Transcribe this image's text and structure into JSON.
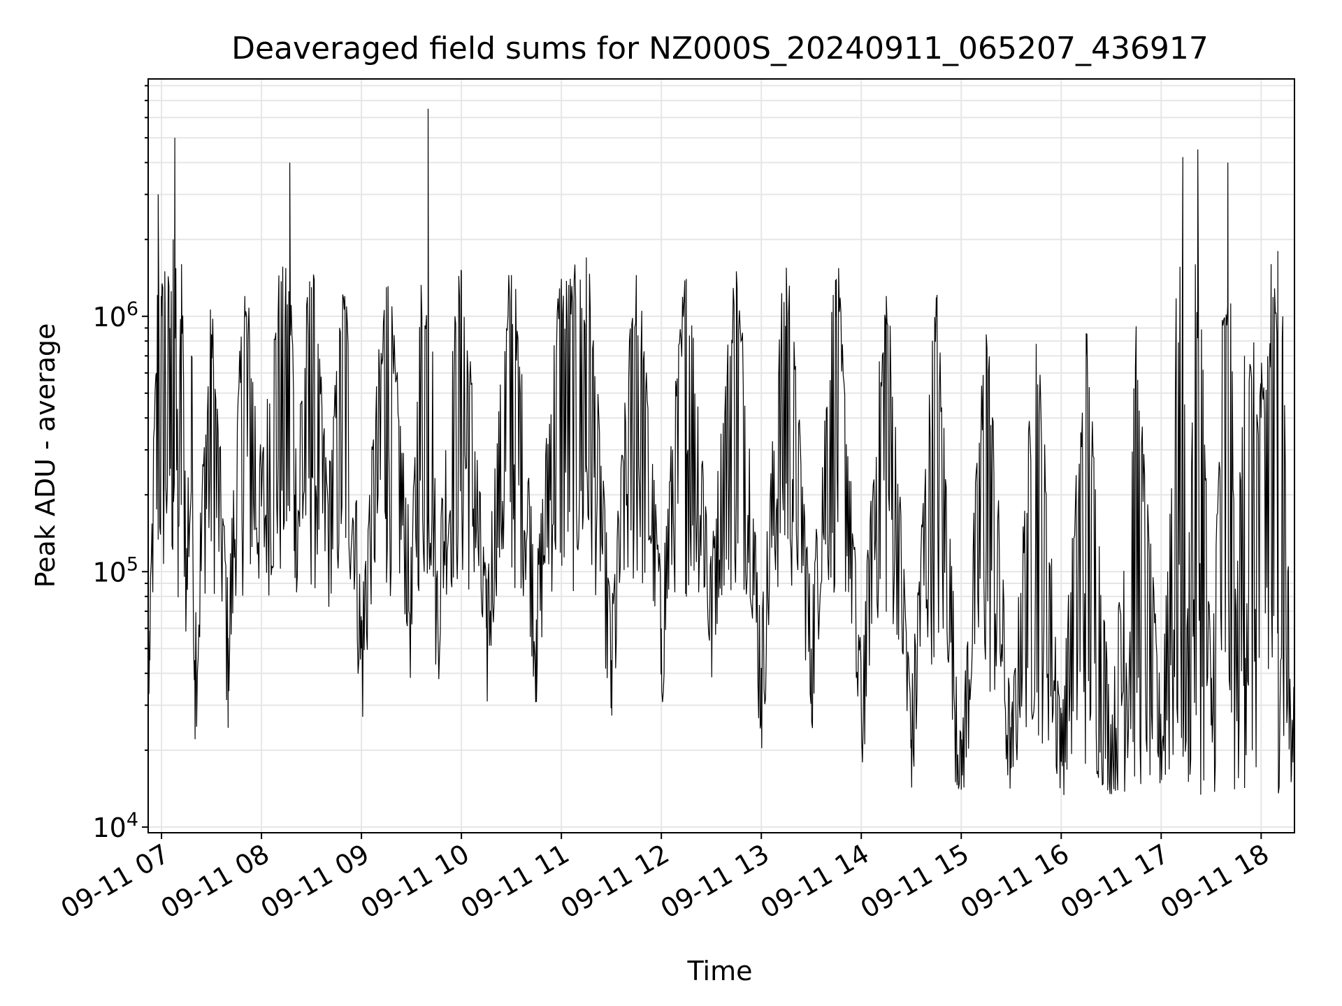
{
  "chart_data": {
    "type": "line",
    "title": "Deaveraged field sums for NZ000S_20240911_065207_436917",
    "xlabel": "Time",
    "ylabel": "Peak ADU - average",
    "yscale": "log",
    "ylim": [
      9500,
      8500000
    ],
    "xlim": [
      "2024-09-11T06:52",
      "2024-09-11T18:20"
    ],
    "grid": true,
    "legend": "none",
    "line_color": "#000000",
    "x_tick_labels": [
      "09-11 07",
      "09-11 08",
      "09-11 09",
      "09-11 10",
      "09-11 11",
      "09-11 12",
      "09-11 13",
      "09-11 14",
      "09-11 15",
      "09-11 16",
      "09-11 17",
      "09-11 18"
    ],
    "x_tick_times": [
      "2024-09-11T07:00",
      "2024-09-11T08:00",
      "2024-09-11T09:00",
      "2024-09-11T10:00",
      "2024-09-11T11:00",
      "2024-09-11T12:00",
      "2024-09-11T13:00",
      "2024-09-11T14:00",
      "2024-09-11T15:00",
      "2024-09-11T16:00",
      "2024-09-11T17:00",
      "2024-09-11T18:00"
    ],
    "y_tick_labels": [
      {
        "base": "10",
        "exp": "4",
        "value": 10000
      },
      {
        "base": "10",
        "exp": "5",
        "value": 100000
      },
      {
        "base": "10",
        "exp": "6",
        "value": 1000000
      }
    ],
    "series": [
      {
        "points": [
          [
            "2024-09-11T06:52",
            70000
          ],
          [
            "2024-09-11T06:53",
            45000
          ],
          [
            "2024-09-11T06:55",
            200000
          ],
          [
            "2024-09-11T06:57",
            600000
          ],
          [
            "2024-09-11T06:58",
            3000000
          ],
          [
            "2024-09-11T07:00",
            1000000
          ],
          [
            "2024-09-11T07:02",
            1500000
          ],
          [
            "2024-09-11T07:05",
            900000
          ],
          [
            "2024-09-11T07:07",
            2000000
          ],
          [
            "2024-09-11T07:08",
            5000000
          ],
          [
            "2024-09-11T07:10",
            150000
          ],
          [
            "2024-09-11T07:12",
            1600000
          ],
          [
            "2024-09-11T07:15",
            90000
          ],
          [
            "2024-09-11T07:18",
            700000
          ],
          [
            "2024-09-11T07:20",
            45000
          ],
          [
            "2024-09-11T07:30",
            850000
          ],
          [
            "2024-09-11T07:40",
            55000
          ],
          [
            "2024-09-11T07:50",
            1200000
          ],
          [
            "2024-09-11T08:00",
            180000
          ],
          [
            "2024-09-11T08:10",
            1000000
          ],
          [
            "2024-09-11T08:17",
            4000000
          ],
          [
            "2024-09-11T08:20",
            200000
          ],
          [
            "2024-09-11T08:30",
            1300000
          ],
          [
            "2024-09-11T08:40",
            150000
          ],
          [
            "2024-09-11T08:50",
            1200000
          ],
          [
            "2024-09-11T09:00",
            50000
          ],
          [
            "2024-09-11T09:15",
            1300000
          ],
          [
            "2024-09-11T09:30",
            80000
          ],
          [
            "2024-09-11T09:40",
            6500000
          ],
          [
            "2024-09-11T09:45",
            70000
          ],
          [
            "2024-09-11T10:00",
            1500000
          ],
          [
            "2024-09-11T10:15",
            60000
          ],
          [
            "2024-09-11T10:30",
            1450000
          ],
          [
            "2024-09-11T10:45",
            65000
          ],
          [
            "2024-09-11T11:00",
            1400000
          ],
          [
            "2024-09-11T11:15",
            1700000
          ],
          [
            "2024-09-11T11:30",
            45000
          ],
          [
            "2024-09-11T11:45",
            1450000
          ],
          [
            "2024-09-11T12:00",
            60000
          ],
          [
            "2024-09-11T12:15",
            1400000
          ],
          [
            "2024-09-11T12:30",
            75000
          ],
          [
            "2024-09-11T12:45",
            1500000
          ],
          [
            "2024-09-11T13:00",
            42000
          ],
          [
            "2024-09-11T13:15",
            1550000
          ],
          [
            "2024-09-11T13:30",
            50000
          ],
          [
            "2024-09-11T13:45",
            1400000
          ],
          [
            "2024-09-11T14:00",
            30000
          ],
          [
            "2024-09-11T14:15",
            1200000
          ],
          [
            "2024-09-11T14:30",
            22000
          ],
          [
            "2024-09-11T14:45",
            1000000
          ],
          [
            "2024-09-11T15:00",
            14000
          ],
          [
            "2024-09-11T15:15",
            850000
          ],
          [
            "2024-09-11T15:30",
            17000
          ],
          [
            "2024-09-11T15:45",
            750000
          ],
          [
            "2024-09-11T16:00",
            18000
          ],
          [
            "2024-09-11T16:15",
            700000
          ],
          [
            "2024-09-11T16:30",
            17000
          ],
          [
            "2024-09-11T16:45",
            600000
          ],
          [
            "2024-09-11T17:00",
            20000
          ],
          [
            "2024-09-11T17:13",
            4200000
          ],
          [
            "2024-09-11T17:15",
            30000
          ],
          [
            "2024-09-11T17:22",
            4500000
          ],
          [
            "2024-09-11T17:30",
            25000
          ],
          [
            "2024-09-11T17:40",
            4000000
          ],
          [
            "2024-09-11T17:45",
            50000
          ],
          [
            "2024-09-11T17:50",
            700000
          ],
          [
            "2024-09-11T18:00",
            400000
          ],
          [
            "2024-09-11T18:06",
            1600000
          ],
          [
            "2024-09-11T18:10",
            1800000
          ],
          [
            "2024-09-11T18:13",
            1000000
          ],
          [
            "2024-09-11T18:16",
            100000
          ],
          [
            "2024-09-11T18:18",
            15000
          ],
          [
            "2024-09-11T18:20",
            25000
          ]
        ]
      }
    ]
  }
}
